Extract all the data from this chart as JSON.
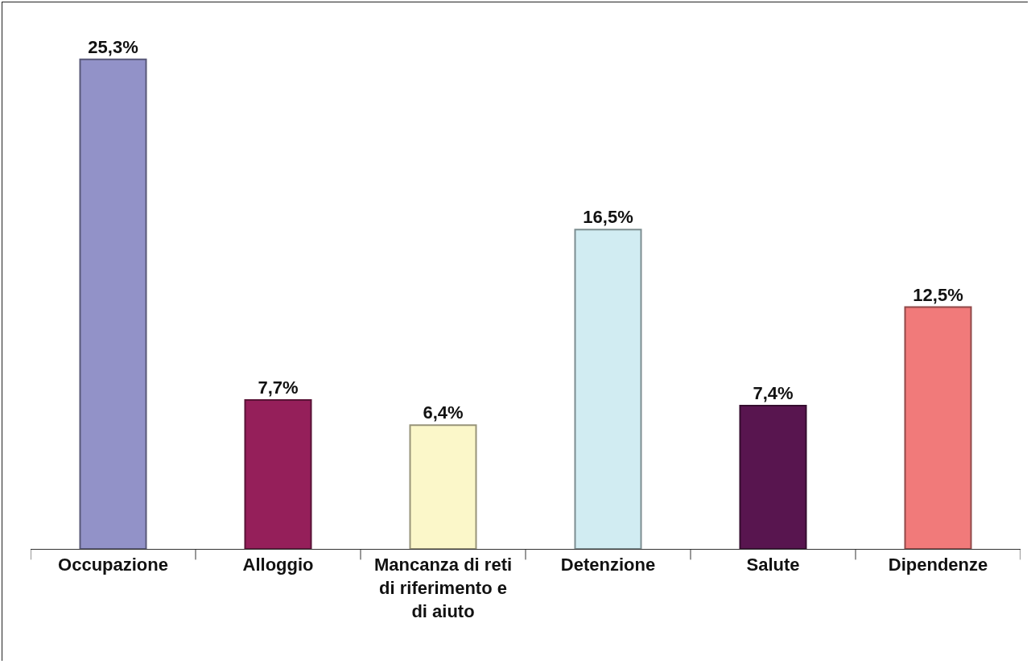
{
  "chart_data": {
    "type": "bar",
    "categories": [
      "Occupazione",
      "Alloggio",
      "Mancanza di reti di riferimento e di aiuto",
      "Detenzione",
      "Salute",
      "Dipendenze"
    ],
    "values": [
      25.3,
      7.7,
      6.4,
      16.5,
      7.4,
      12.5
    ],
    "value_labels": [
      "25,3%",
      "7,7%",
      "6,4%",
      "16,5%",
      "7,4%",
      "12,5%"
    ],
    "colors": [
      "#9292c8",
      "#951f5a",
      "#fbf7c9",
      "#d1ecf2",
      "#58154f",
      "#f17a7a"
    ]
  }
}
